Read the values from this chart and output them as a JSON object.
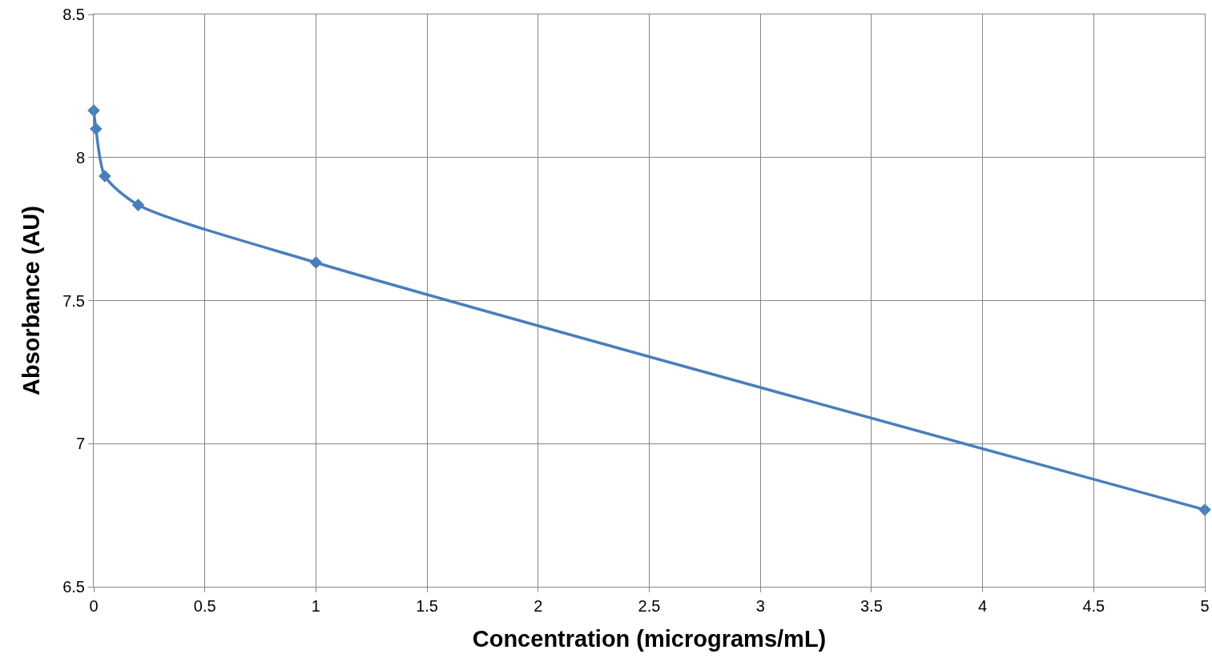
{
  "chart_data": {
    "type": "line",
    "xlabel": "Concentration (micrograms/mL)",
    "ylabel": "Absorbance (AU)",
    "x": [
      0,
      0.01,
      0.05,
      0.2,
      1,
      5
    ],
    "series": [
      {
        "color": "#4a7ebb",
        "values": [
          8.164,
          8.1,
          7.935,
          7.834,
          7.633,
          6.769
        ]
      }
    ],
    "xlim": [
      0,
      5
    ],
    "xticks": [
      0,
      0.5,
      1,
      1.5,
      2,
      2.5,
      3,
      3.5,
      4,
      4.5,
      5
    ],
    "ylim": [
      6.5,
      8.5
    ],
    "yticks": [
      6.5,
      7,
      7.5,
      8,
      8.5
    ],
    "grid": true,
    "marker": "diamond",
    "line_style": "solid",
    "legend": false
  }
}
